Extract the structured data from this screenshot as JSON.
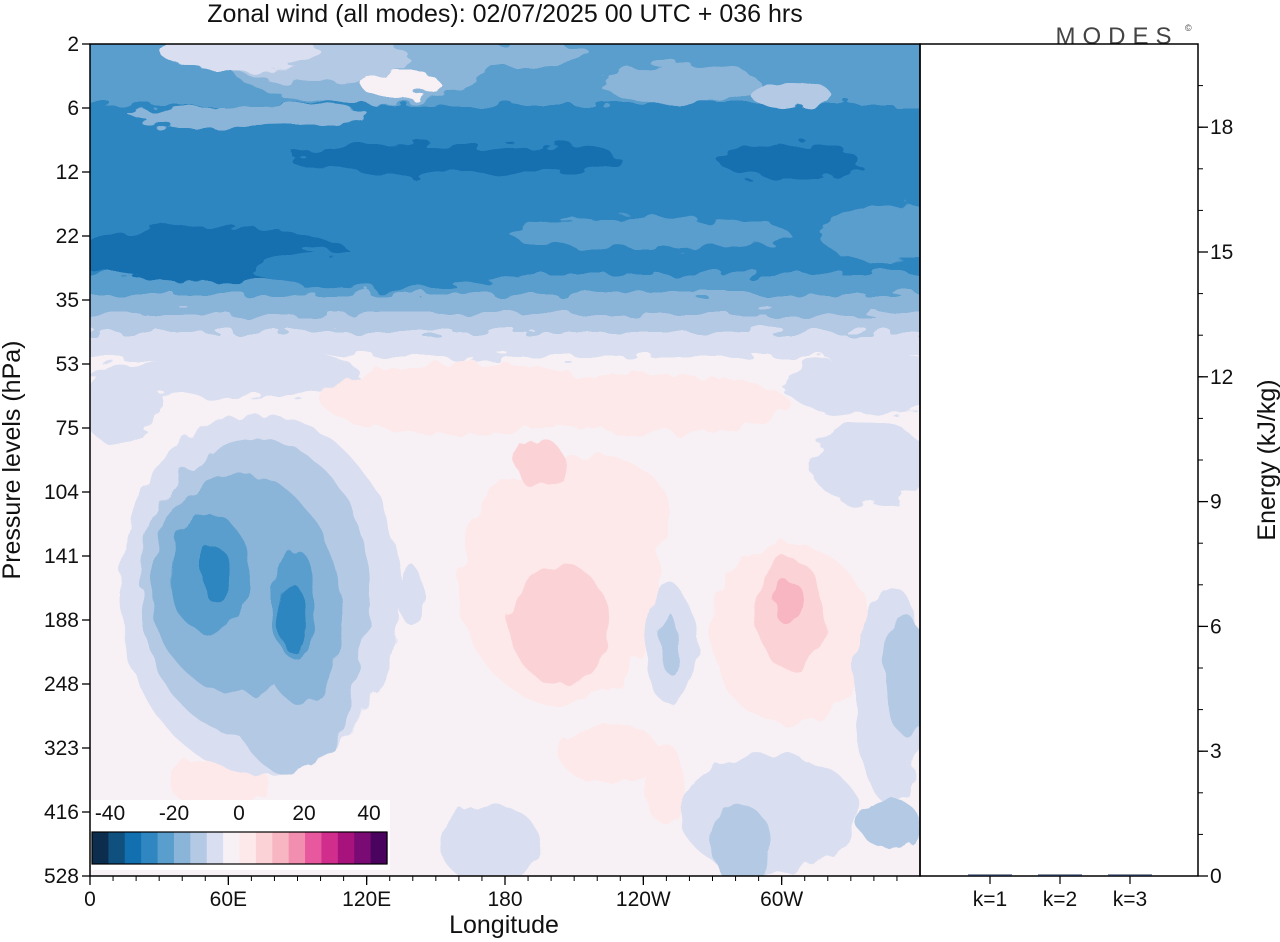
{
  "logo": "MODES",
  "logo_mark": "©",
  "chart_data": [
    {
      "type": "heatmap",
      "title": "Zonal wind (all modes):  02/07/2025  00 UTC  + 036 hrs",
      "xlabel": "Longitude",
      "ylabel": "Pressure levels (hPa)",
      "x_ticks": [
        "0",
        "60E",
        "120E",
        "180",
        "120W",
        "60W"
      ],
      "x_tick_degrees": [
        0,
        60,
        120,
        180,
        240,
        300
      ],
      "x_range_degrees": [
        0,
        360
      ],
      "y_ticks": [
        "2",
        "6",
        "12",
        "22",
        "35",
        "53",
        "75",
        "104",
        "141",
        "188",
        "248",
        "323",
        "416",
        "528"
      ],
      "y_scale": "categorical pressure levels, 2 hPa at top, 528 hPa at bottom",
      "colorbar": {
        "tick_labels": [
          "-40",
          "-20",
          "0",
          "20",
          "40"
        ],
        "range": [
          -45,
          45
        ],
        "step": 5,
        "colors": [
          "#0d2d4f",
          "#10507f",
          "#1370b0",
          "#2f86c1",
          "#5a9ecd",
          "#8bb5d8",
          "#b4c9e3",
          "#d9def0",
          "#f7f1f6",
          "#fde9ea",
          "#fbd3d6",
          "#f8b6c2",
          "#f28eb0",
          "#e8589e",
          "#d12d8d",
          "#a8127c",
          "#7a0b74",
          "#4a0460"
        ]
      },
      "bands": [
        {
          "levels": [
            "2",
            "6"
          ],
          "value": -15,
          "description": "weak easterlies -10 to -20 with near-zero patches"
        },
        {
          "levels": [
            "12",
            "22"
          ],
          "value": -30,
          "description": "strong easterlies -25 to -35"
        },
        {
          "levels": [
            "35"
          ],
          "value": -20
        },
        {
          "levels": [
            "53",
            "104"
          ],
          "value": 0,
          "description": "near-zero, weak westerly patches near 180"
        }
      ],
      "features": [
        {
          "lon": 75,
          "level": "141-188",
          "value": -30,
          "sign": "easterly"
        },
        {
          "lon": 200,
          "level": "104-248",
          "value": 10,
          "sign": "westerly"
        },
        {
          "lon": 296,
          "level": "141-248",
          "value": 15,
          "sign": "westerly"
        },
        {
          "lon": 355,
          "level": "188-416",
          "value": -10,
          "sign": "easterly"
        }
      ]
    },
    {
      "type": "bar",
      "ylabel": "Energy (kJ/kg)",
      "categories": [
        "k=1",
        "k=2",
        "k=3"
      ],
      "values": [
        0.02,
        0.01,
        0.01
      ],
      "ylim": [
        0,
        20
      ],
      "y_ticks": [
        "0",
        "3",
        "6",
        "9",
        "12",
        "15",
        "18"
      ],
      "y_tick_values": [
        0,
        3,
        6,
        9,
        12,
        15,
        18
      ],
      "minor_step": 1
    }
  ]
}
